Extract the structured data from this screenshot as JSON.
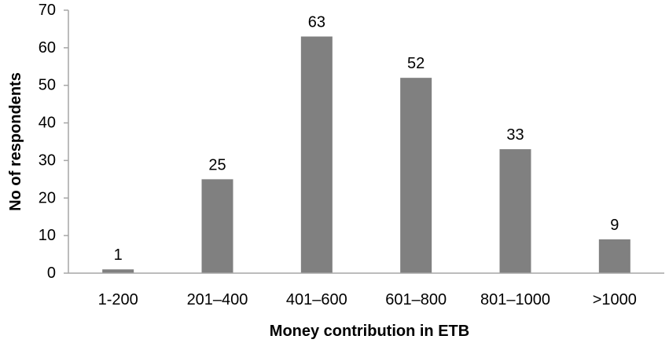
{
  "chart_data": {
    "type": "bar",
    "categories": [
      "1-200",
      "201–400",
      "401–600",
      "601–800",
      "801–1000",
      ">1000"
    ],
    "values": [
      1,
      25,
      63,
      52,
      33,
      9
    ],
    "data_labels": [
      "1",
      "25",
      "63",
      "52",
      "33",
      "9"
    ],
    "title": "",
    "xlabel": "Money contribution in ETB",
    "ylabel": "No of respondents",
    "ylim": [
      0,
      70
    ],
    "yticks": [
      0,
      10,
      20,
      30,
      40,
      50,
      60,
      70
    ],
    "grid": false,
    "legend": "none",
    "bar_color": "#808080",
    "axis_color": "#a6a6a6"
  }
}
